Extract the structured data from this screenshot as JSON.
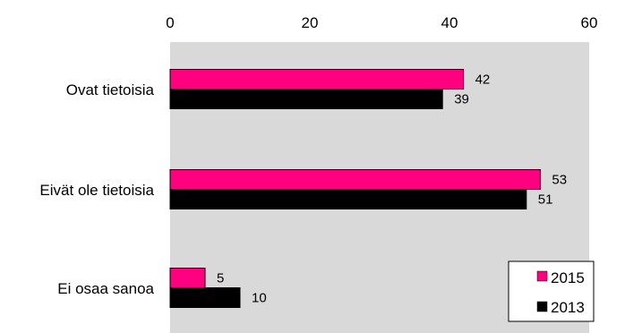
{
  "chart_data": {
    "type": "bar",
    "orientation": "horizontal",
    "categories": [
      "Ovat tietoisia",
      "Eivät ole tietoisia",
      "Ei osaa sanoa"
    ],
    "series": [
      {
        "name": "2015",
        "values": [
          42,
          53,
          5
        ],
        "color": "#ff0080"
      },
      {
        "name": "2013",
        "values": [
          39,
          51,
          10
        ],
        "color": "#000000"
      }
    ],
    "x_ticks": [
      "0",
      "20",
      "40",
      "60"
    ],
    "xlim": [
      0,
      60
    ],
    "x_axis_position": "top",
    "grid": false,
    "plot_background": "#d9d9d9",
    "legend_position": "bottom-right"
  }
}
